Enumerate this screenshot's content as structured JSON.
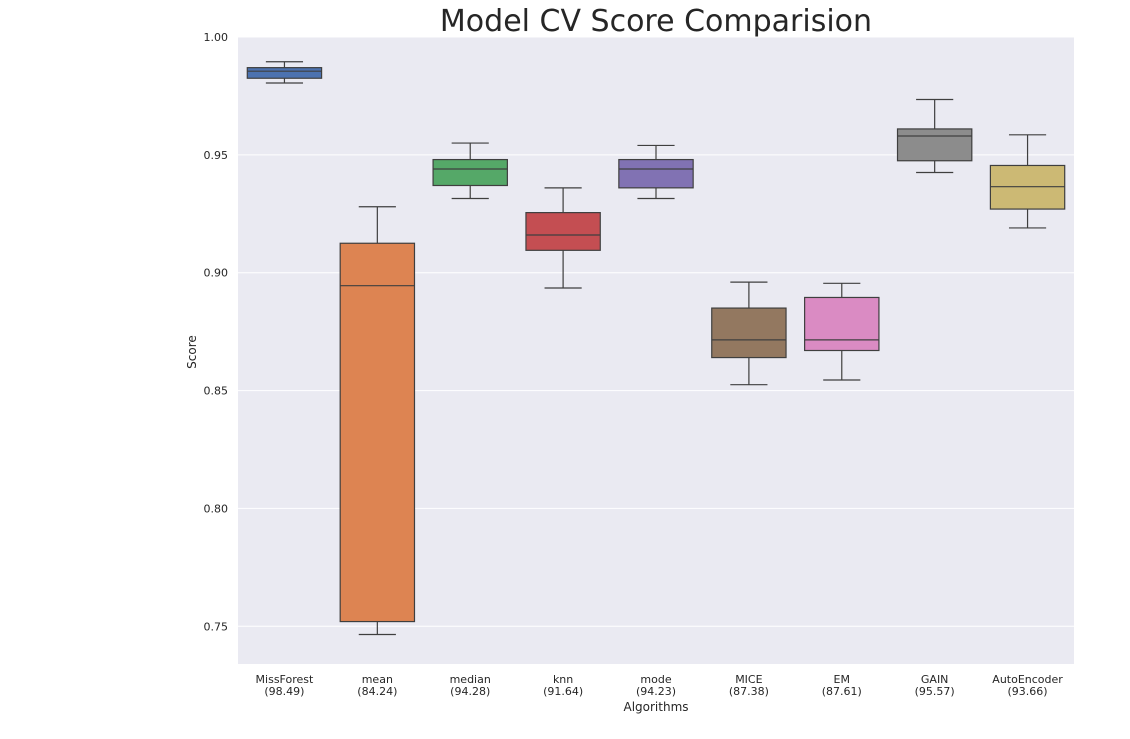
{
  "chart_data": {
    "type": "box",
    "title": "Model CV Score Comparision",
    "xlabel": "Algorithms",
    "ylabel": "Score",
    "ylim": [
      0.734,
      1.0
    ],
    "yticks": [
      "0.75",
      "0.80",
      "0.85",
      "0.90",
      "0.95",
      "1.00"
    ],
    "grid": true,
    "boxes": [
      {
        "name": "MissForest",
        "label_line1": "MissForest",
        "label_line2": "(98.49)",
        "color": "#4c72b0",
        "whisker_low": 0.9805,
        "q1": 0.9825,
        "median": 0.9855,
        "q3": 0.987,
        "whisker_high": 0.9895
      },
      {
        "name": "mean",
        "label_line1": "mean",
        "label_line2": "(84.24)",
        "color": "#dd8452",
        "whisker_low": 0.7465,
        "q1": 0.752,
        "median": 0.8945,
        "q3": 0.9125,
        "whisker_high": 0.928
      },
      {
        "name": "median",
        "label_line1": "median",
        "label_line2": "(94.28)",
        "color": "#55a868",
        "whisker_low": 0.9315,
        "q1": 0.937,
        "median": 0.944,
        "q3": 0.948,
        "whisker_high": 0.955
      },
      {
        "name": "knn",
        "label_line1": "knn",
        "label_line2": "(91.64)",
        "color": "#c44e52",
        "whisker_low": 0.8935,
        "q1": 0.9095,
        "median": 0.916,
        "q3": 0.9255,
        "whisker_high": 0.936
      },
      {
        "name": "mode",
        "label_line1": "mode",
        "label_line2": "(94.23)",
        "color": "#8172b3",
        "whisker_low": 0.9315,
        "q1": 0.936,
        "median": 0.944,
        "q3": 0.948,
        "whisker_high": 0.954
      },
      {
        "name": "MICE",
        "label_line1": "MICE",
        "label_line2": "(87.38)",
        "color": "#937860",
        "whisker_low": 0.8525,
        "q1": 0.864,
        "median": 0.8715,
        "q3": 0.885,
        "whisker_high": 0.896
      },
      {
        "name": "EM",
        "label_line1": "EM",
        "label_line2": "(87.61)",
        "color": "#da8bc3",
        "whisker_low": 0.8545,
        "q1": 0.867,
        "median": 0.8715,
        "q3": 0.8895,
        "whisker_high": 0.8955
      },
      {
        "name": "GAIN",
        "label_line1": "GAIN",
        "label_line2": "(95.57)",
        "color": "#8c8c8c",
        "whisker_low": 0.9425,
        "q1": 0.9475,
        "median": 0.958,
        "q3": 0.961,
        "whisker_high": 0.9735
      },
      {
        "name": "AutoEncoder",
        "label_line1": "AutoEncoder",
        "label_line2": "(93.66)",
        "color": "#ccb974",
        "whisker_low": 0.919,
        "q1": 0.927,
        "median": 0.9365,
        "q3": 0.9455,
        "whisker_high": 0.9585
      }
    ]
  }
}
